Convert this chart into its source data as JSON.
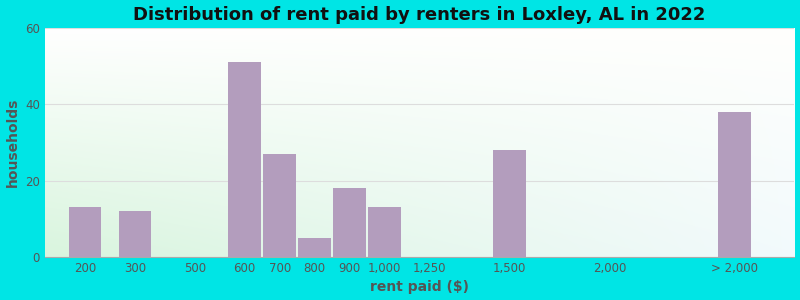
{
  "title": "Distribution of rent paid by renters in Loxley, AL in 2022",
  "xlabel": "rent paid ($)",
  "ylabel": "households",
  "bar_color": "#b39dbd",
  "background_color": "#00e5e5",
  "ylim": [
    0,
    60
  ],
  "yticks": [
    0,
    20,
    40,
    60
  ],
  "categories": [
    "200",
    "300",
    "500",
    "600",
    "700",
    "800",
    "900",
    "1,000",
    "1,250",
    "1,500",
    "2,000",
    "> 2,000"
  ],
  "values": [
    13,
    12,
    0,
    51,
    27,
    5,
    18,
    13,
    0,
    28,
    0,
    38
  ],
  "x_positions": [
    1,
    2,
    3.2,
    4.2,
    4.9,
    5.6,
    6.3,
    7.0,
    7.9,
    9.5,
    11.5,
    14.0
  ],
  "bar_width": 0.65,
  "title_fontsize": 13,
  "axis_label_fontsize": 10,
  "tick_fontsize": 8.5,
  "grid_color": "#dddddd",
  "tick_color": "#555555"
}
